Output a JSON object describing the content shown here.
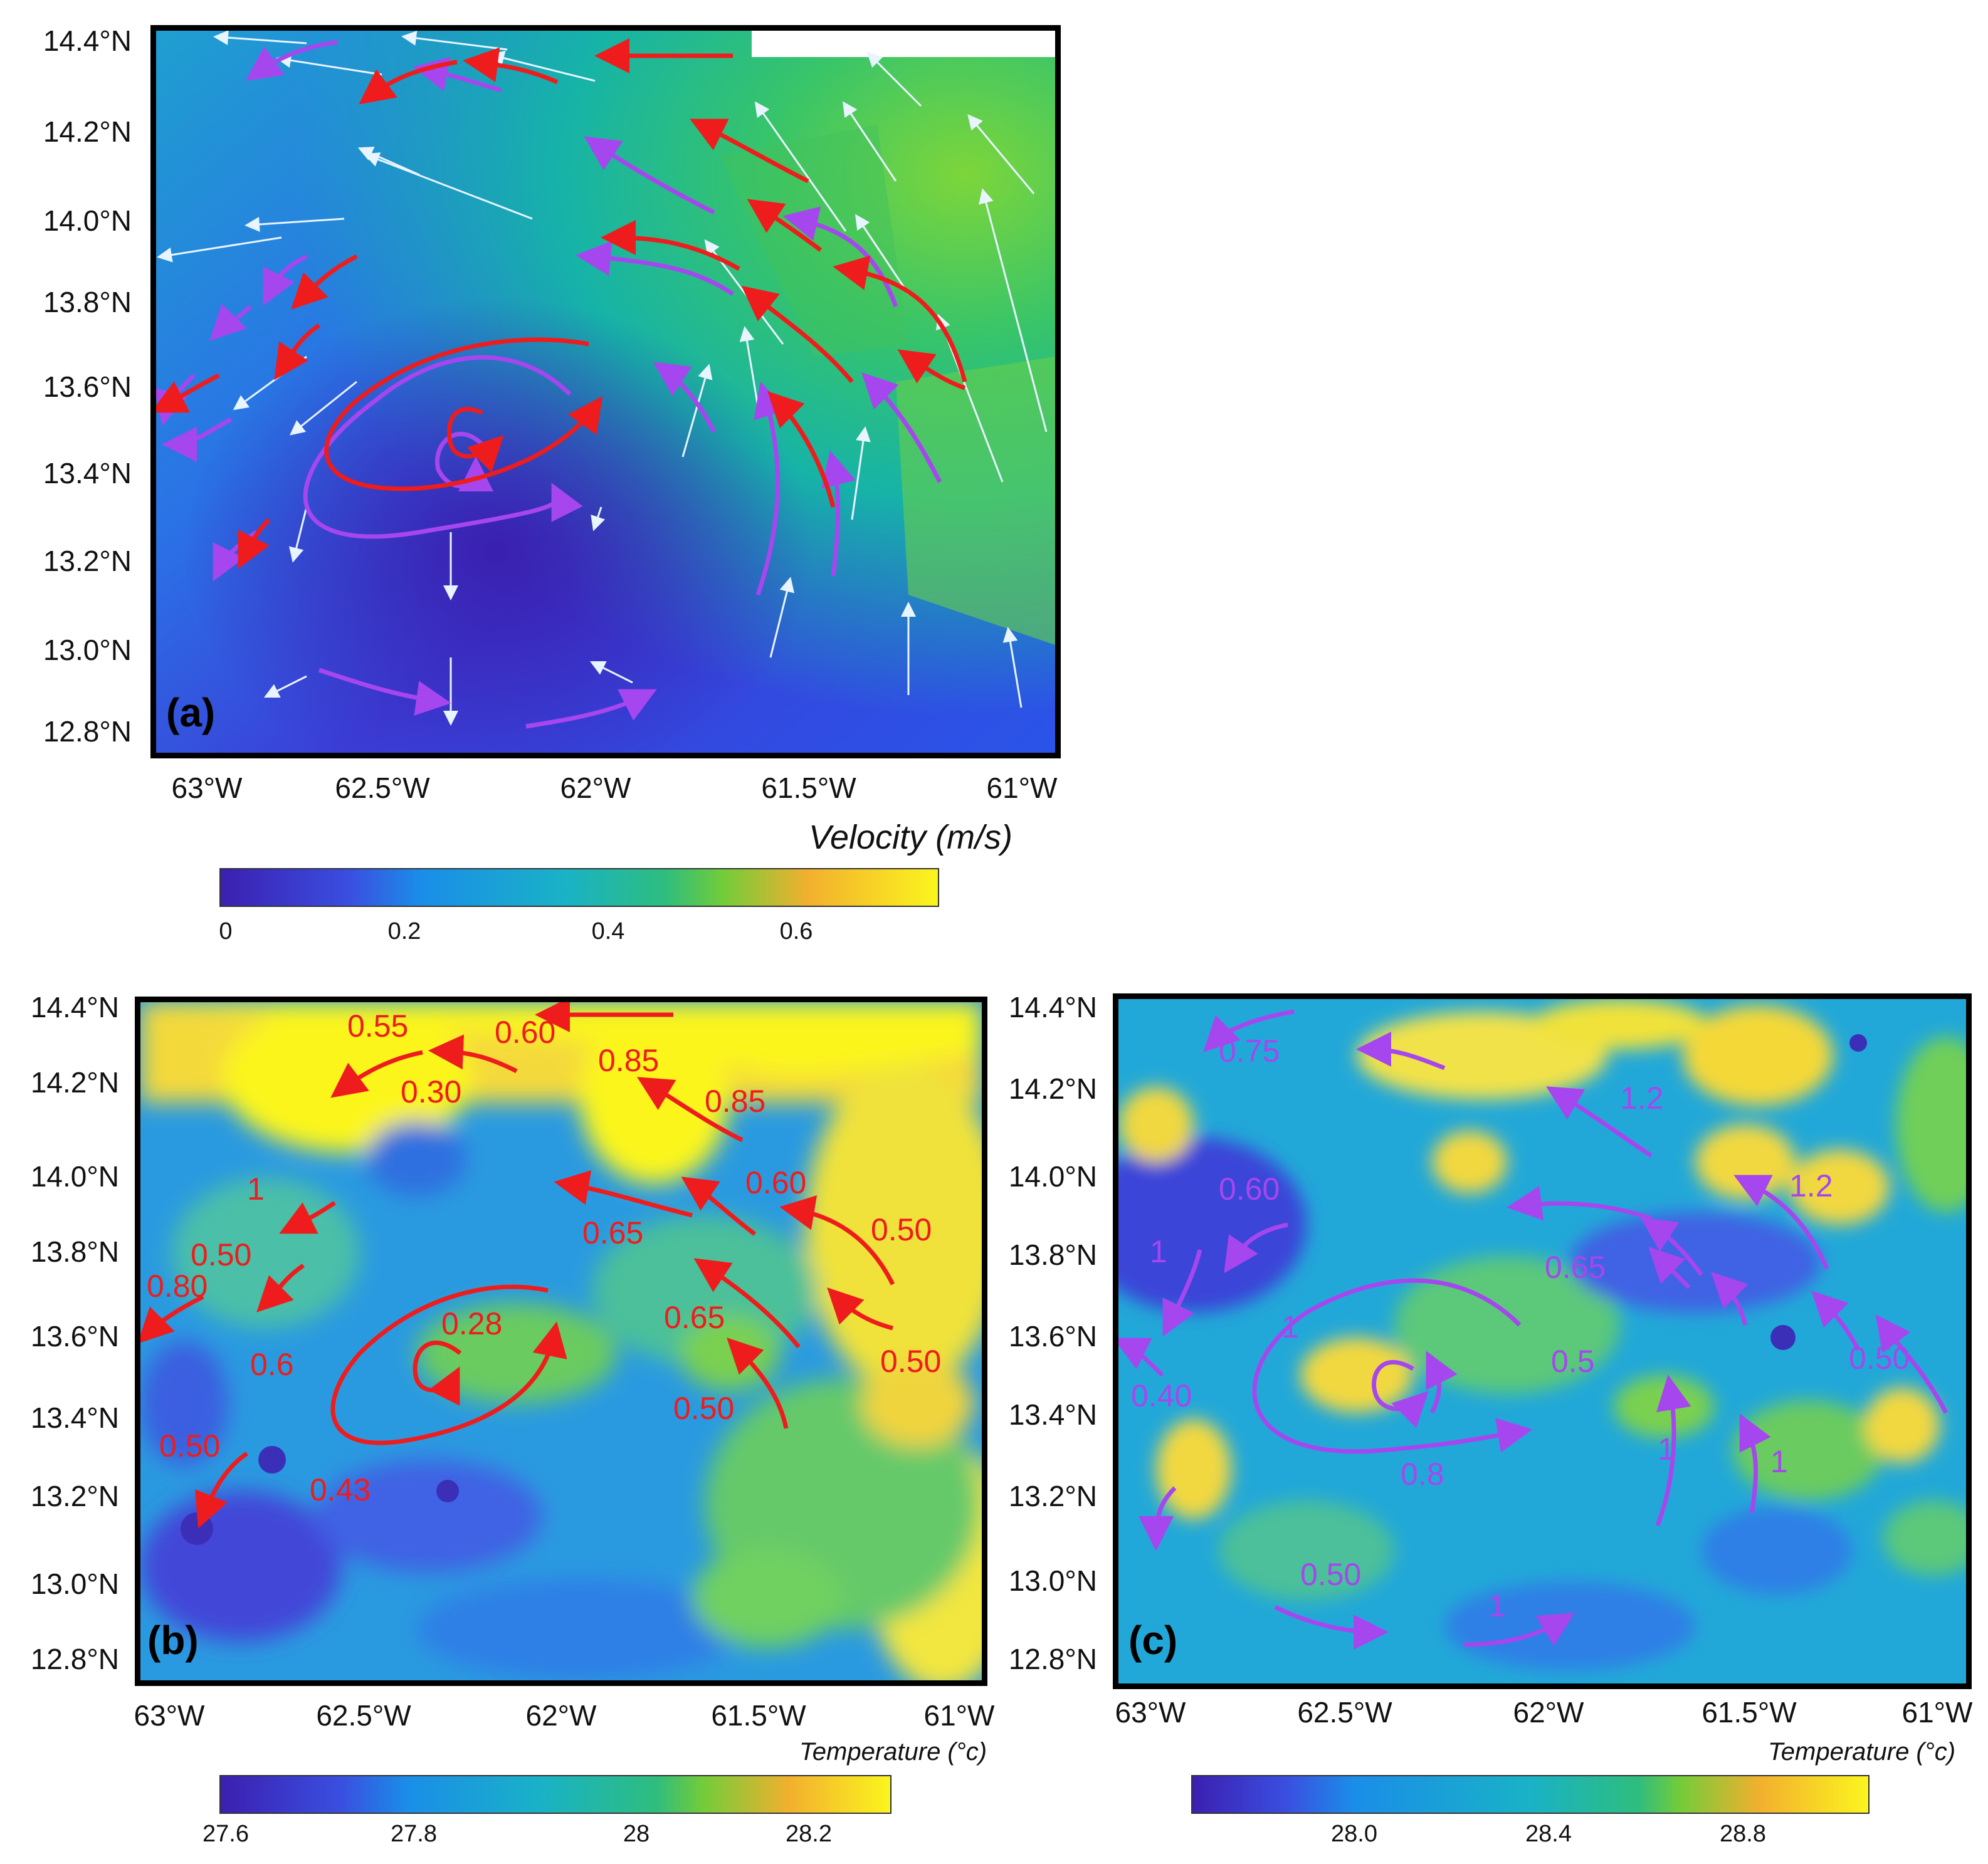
{
  "panels": {
    "a": {
      "label": "(a)",
      "lat_ticks": [
        "14.4°N",
        "14.2°N",
        "14.0°N",
        "13.8°N",
        "13.6°N",
        "13.4°N",
        "13.2°N",
        "13.0°N",
        "12.8°N"
      ],
      "lon_ticks": [
        "63°W",
        "62.5°W",
        "62°W",
        "61.5°W",
        "61°W"
      ],
      "colorbar": {
        "title": "Velocity  (m/s)",
        "ticks": [
          "0",
          "0.2",
          "0.4",
          "0.6"
        ]
      }
    },
    "b": {
      "label": "(b)",
      "lat_ticks": [
        "14.4°N",
        "14.2°N",
        "14.0°N",
        "13.8°N",
        "13.6°N",
        "13.4°N",
        "13.2°N",
        "13.0°N",
        "12.8°N"
      ],
      "lon_ticks": [
        "63°W",
        "62.5°W",
        "62°W",
        "61.5°W",
        "61°W"
      ],
      "colorbar": {
        "title": "Temperature (°c)",
        "ticks": [
          "27.6",
          "27.8",
          "28",
          "28.2"
        ]
      },
      "value_labels": [
        "0.55",
        "0.60",
        "0.85",
        "0.30",
        "0.85",
        "1",
        "0.60",
        "0.65",
        "0.50",
        "0.50",
        "0.80",
        "0.28",
        "0.65",
        "0.6",
        "0.50",
        "0.50",
        "0.50",
        "0.43"
      ]
    },
    "c": {
      "label": "(c)",
      "lat_ticks": [
        "14.4°N",
        "14.2°N",
        "14.0°N",
        "13.8°N",
        "13.6°N",
        "13.4°N",
        "13.2°N",
        "13.0°N",
        "12.8°N"
      ],
      "lon_ticks": [
        "63°W",
        "62.5°W",
        "62°W",
        "61.5°W",
        "61°W"
      ],
      "colorbar": {
        "title": "Temperature (°c)",
        "ticks": [
          "28.0",
          "28.4",
          "28.8"
        ]
      },
      "value_labels": [
        "0.75",
        "1.2",
        "0.60",
        "1.2",
        "1",
        "0.65",
        "1",
        "0.5",
        "0.50",
        "0.40",
        "0.8",
        "1",
        "1",
        "0.50",
        "1"
      ]
    }
  },
  "colors": {
    "red_arrow": "#ee1c1c",
    "purple_arrow": "#a646ee",
    "white_arrow": "#e8f4ff"
  }
}
